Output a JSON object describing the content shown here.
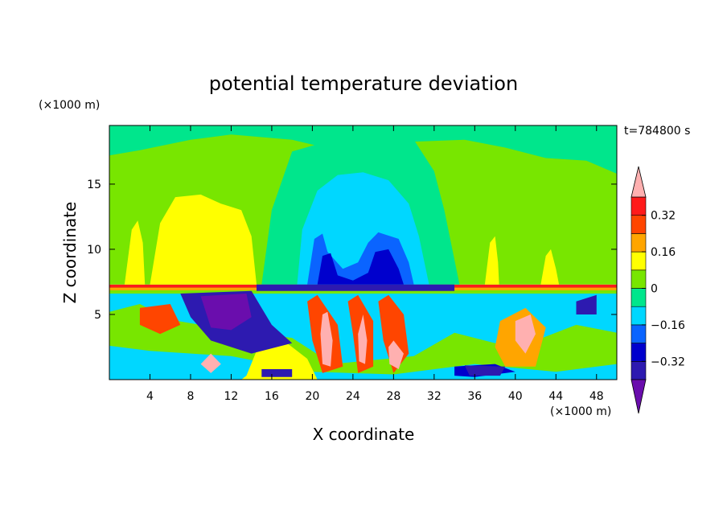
{
  "chart_data": {
    "type": "heatmap",
    "title": "potential temperature deviation",
    "time_label": "t=784800 s",
    "xlabel": "X coordinate",
    "ylabel": "Z coordinate",
    "x_unit": "(×1000 m)",
    "y_unit": "(×1000 m)",
    "xlim": [
      0,
      50
    ],
    "ylim": [
      0,
      19.5
    ],
    "x_ticks": [
      4,
      8,
      12,
      16,
      20,
      24,
      28,
      32,
      36,
      40,
      44,
      48
    ],
    "y_ticks": [
      5,
      10,
      15
    ],
    "colorbar": {
      "labels": [
        "0.32",
        "0.16",
        "0",
        "−0.16",
        "−0.32"
      ],
      "label_values": [
        0.32,
        0.16,
        0,
        -0.16,
        -0.32
      ],
      "levels": [
        -0.4,
        -0.32,
        -0.24,
        -0.16,
        -0.08,
        0,
        0.08,
        0.16,
        0.24,
        0.32,
        0.4
      ],
      "colors": [
        "#6a0dad",
        "#2d1ab0",
        "#0000cd",
        "#0a64ff",
        "#00d7ff",
        "#00e68c",
        "#78e600",
        "#ffff00",
        "#ffa500",
        "#ff4500",
        "#ff1a1a",
        "#ffb0b0"
      ]
    },
    "regions": [
      {
        "value": -0.44,
        "points": [
          [
            0,
            6.8
          ],
          [
            50,
            6.8
          ],
          [
            50,
            0
          ],
          [
            0,
            0
          ]
        ]
      },
      {
        "value": -0.1,
        "points": [
          [
            0,
            6.8
          ],
          [
            50,
            6.8
          ],
          [
            50,
            0
          ],
          [
            0,
            0
          ]
        ]
      },
      {
        "value": 0.04,
        "points": [
          [
            0,
            7.2
          ],
          [
            50,
            7.2
          ],
          [
            50,
            6.6
          ],
          [
            0,
            6.6
          ]
        ]
      },
      {
        "value": 0.04,
        "points": [
          [
            0,
            5.2
          ],
          [
            3,
            5.8
          ],
          [
            6,
            4.6
          ],
          [
            12,
            3.8
          ],
          [
            18,
            3.2
          ],
          [
            22,
            1.2
          ],
          [
            30,
            1.8
          ],
          [
            34,
            3.6
          ],
          [
            40,
            2.4
          ],
          [
            46,
            4.2
          ],
          [
            50,
            3.6
          ],
          [
            50,
            1.2
          ],
          [
            44,
            0.6
          ],
          [
            36,
            1.2
          ],
          [
            28,
            0.4
          ],
          [
            20,
            0.6
          ],
          [
            12,
            1.8
          ],
          [
            4,
            2.2
          ],
          [
            0,
            2.6
          ]
        ]
      },
      {
        "value": 0.12,
        "points": [
          [
            13.5,
            0.3
          ],
          [
            14.5,
            2.2
          ],
          [
            17.5,
            2.8
          ],
          [
            19.5,
            1.6
          ],
          [
            20.5,
            0
          ],
          [
            13,
            0
          ]
        ]
      },
      {
        "value": 0.28,
        "points": [
          [
            20.5,
            6.5
          ],
          [
            22.5,
            4.2
          ],
          [
            23,
            1
          ],
          [
            21,
            0.5
          ],
          [
            20,
            3
          ],
          [
            19.5,
            6
          ]
        ]
      },
      {
        "value": 0.28,
        "points": [
          [
            24.5,
            6.5
          ],
          [
            26,
            4.5
          ],
          [
            26,
            1
          ],
          [
            24.5,
            0.5
          ],
          [
            24,
            3.5
          ],
          [
            23.5,
            6
          ]
        ]
      },
      {
        "value": 0.28,
        "points": [
          [
            27.5,
            6.5
          ],
          [
            29,
            5
          ],
          [
            29.5,
            2
          ],
          [
            28,
            0.5
          ],
          [
            27,
            3
          ],
          [
            26.5,
            6
          ]
        ]
      },
      {
        "value": 0.44,
        "points": [
          [
            21.5,
            5.2
          ],
          [
            22,
            3
          ],
          [
            21.8,
            1
          ],
          [
            21,
            1.2
          ],
          [
            20.8,
            3.5
          ],
          [
            21,
            5
          ]
        ]
      },
      {
        "value": 0.44,
        "points": [
          [
            25,
            5
          ],
          [
            25.4,
            3
          ],
          [
            25.2,
            1.2
          ],
          [
            24.6,
            1.4
          ],
          [
            24.5,
            3.5
          ]
        ]
      },
      {
        "value": 0.44,
        "points": [
          [
            28,
            3
          ],
          [
            29,
            2
          ],
          [
            28.5,
            0.8
          ],
          [
            27.6,
            1.2
          ],
          [
            27.5,
            2.5
          ]
        ]
      },
      {
        "value": 0.2,
        "points": [
          [
            38.5,
            4.5
          ],
          [
            41,
            5.5
          ],
          [
            43,
            4
          ],
          [
            42,
            1
          ],
          [
            39,
            1
          ],
          [
            38,
            2.5
          ]
        ]
      },
      {
        "value": 0.44,
        "points": [
          [
            40,
            4.5
          ],
          [
            41.5,
            5
          ],
          [
            42,
            3.5
          ],
          [
            41,
            2
          ],
          [
            40,
            3
          ]
        ]
      },
      {
        "value": 0.28,
        "points": [
          [
            3,
            5.5
          ],
          [
            6,
            5.8
          ],
          [
            7,
            4.2
          ],
          [
            5,
            3.5
          ],
          [
            3,
            4.2
          ]
        ]
      },
      {
        "value": 0.44,
        "points": [
          [
            9,
            1.2
          ],
          [
            10,
            2
          ],
          [
            11,
            1.2
          ],
          [
            10,
            0.5
          ]
        ]
      },
      {
        "value": -0.38,
        "points": [
          [
            7,
            6.6
          ],
          [
            14,
            6.8
          ],
          [
            16,
            4.2
          ],
          [
            18,
            2.8
          ],
          [
            14,
            2
          ],
          [
            10,
            3
          ],
          [
            8,
            4.8
          ]
        ]
      },
      {
        "value": -0.44,
        "points": [
          [
            9,
            6.4
          ],
          [
            13.5,
            6.6
          ],
          [
            14,
            4.8
          ],
          [
            12,
            3.8
          ],
          [
            10,
            4
          ],
          [
            9.5,
            5.2
          ]
        ]
      },
      {
        "value": -0.3,
        "points": [
          [
            34,
            1
          ],
          [
            38,
            1.2
          ],
          [
            40,
            0.6
          ],
          [
            36,
            0.2
          ],
          [
            34,
            0.3
          ]
        ]
      },
      {
        "value": -0.38,
        "points": [
          [
            15,
            0.8
          ],
          [
            18,
            0.8
          ],
          [
            18,
            0.2
          ],
          [
            15,
            0.2
          ]
        ]
      },
      {
        "value": -0.38,
        "points": [
          [
            46,
            6
          ],
          [
            48,
            6.5
          ],
          [
            48,
            5
          ],
          [
            46,
            5
          ]
        ]
      },
      {
        "value": -0.38,
        "points": [
          [
            35,
            1.1
          ],
          [
            39,
            1
          ],
          [
            38.5,
            0.3
          ],
          [
            35.5,
            0.3
          ]
        ]
      },
      {
        "value": 0.36,
        "points": [
          [
            0,
            7.3
          ],
          [
            50,
            7.3
          ],
          [
            50,
            7.05
          ],
          [
            0,
            7.05
          ]
        ]
      },
      {
        "value": 0.2,
        "points": [
          [
            0,
            7.05
          ],
          [
            50,
            7.05
          ],
          [
            50,
            6.85
          ],
          [
            0,
            6.85
          ]
        ]
      },
      {
        "value": 0.04,
        "points": [
          [
            0,
            19.5
          ],
          [
            50,
            19.5
          ],
          [
            50,
            7.3
          ],
          [
            0,
            7.3
          ]
        ]
      },
      {
        "value": -0.04,
        "points": [
          [
            0,
            19.5
          ],
          [
            50,
            19.5
          ],
          [
            50,
            15.8
          ],
          [
            47,
            16.8
          ],
          [
            43,
            17
          ],
          [
            39,
            17.8
          ],
          [
            35,
            18.4
          ],
          [
            28,
            18.2
          ],
          [
            24,
            17.3
          ],
          [
            18,
            18.4
          ],
          [
            12,
            18.8
          ],
          [
            8,
            18.4
          ],
          [
            3,
            17.6
          ],
          [
            0,
            17.2
          ]
        ]
      },
      {
        "value": -0.04,
        "points": [
          [
            15,
            7.3
          ],
          [
            16,
            13
          ],
          [
            18,
            17.5
          ],
          [
            22,
            18.4
          ],
          [
            26,
            18.8
          ],
          [
            30,
            18.4
          ],
          [
            32,
            16
          ],
          [
            33,
            13
          ],
          [
            34.5,
            7.3
          ]
        ]
      },
      {
        "value": -0.12,
        "points": [
          [
            18.5,
            7.3
          ],
          [
            19,
            11.5
          ],
          [
            20.5,
            14.5
          ],
          [
            22.5,
            15.7
          ],
          [
            25,
            15.9
          ],
          [
            27.5,
            15.3
          ],
          [
            29.5,
            13.5
          ],
          [
            30.5,
            11
          ],
          [
            31.5,
            7.3
          ]
        ]
      },
      {
        "value": -0.2,
        "points": [
          [
            19.5,
            7.3
          ],
          [
            20.2,
            10.8
          ],
          [
            21,
            11.2
          ],
          [
            21.5,
            9.8
          ],
          [
            23,
            8.5
          ],
          [
            24.5,
            9
          ],
          [
            25.5,
            10.5
          ],
          [
            26.5,
            11.3
          ],
          [
            28.5,
            10.8
          ],
          [
            29.5,
            9
          ],
          [
            30,
            7.3
          ]
        ]
      },
      {
        "value": -0.28,
        "points": [
          [
            20.5,
            7.3
          ],
          [
            21,
            9.5
          ],
          [
            21.8,
            9.7
          ],
          [
            22.5,
            8
          ],
          [
            24,
            7.6
          ],
          [
            25.5,
            8.2
          ],
          [
            26.2,
            9.8
          ],
          [
            27.5,
            10
          ],
          [
            28.5,
            8.5
          ],
          [
            29,
            7.3
          ]
        ]
      },
      {
        "value": -0.38,
        "points": [
          [
            14.5,
            7.3
          ],
          [
            34,
            7.3
          ],
          [
            34,
            6.8
          ],
          [
            14.5,
            6.8
          ]
        ]
      },
      {
        "value": 0.12,
        "points": [
          [
            4,
            7.3
          ],
          [
            5,
            12
          ],
          [
            6.5,
            14
          ],
          [
            9,
            14.2
          ],
          [
            11,
            13.5
          ],
          [
            13,
            13
          ],
          [
            14,
            11
          ],
          [
            14.5,
            7.3
          ]
        ]
      },
      {
        "value": 0.12,
        "points": [
          [
            1.5,
            7.3
          ],
          [
            2.2,
            11.5
          ],
          [
            2.8,
            12.2
          ],
          [
            3.3,
            10.5
          ],
          [
            3.5,
            7.3
          ]
        ]
      },
      {
        "value": 0.12,
        "points": [
          [
            42.5,
            7.3
          ],
          [
            43,
            9.5
          ],
          [
            43.5,
            10
          ],
          [
            44,
            8.5
          ],
          [
            44.3,
            7.3
          ]
        ]
      },
      {
        "value": 0.12,
        "points": [
          [
            37,
            7.3
          ],
          [
            37.5,
            10.5
          ],
          [
            38,
            11
          ],
          [
            38.3,
            9
          ],
          [
            38.4,
            7.3
          ]
        ]
      }
    ]
  }
}
